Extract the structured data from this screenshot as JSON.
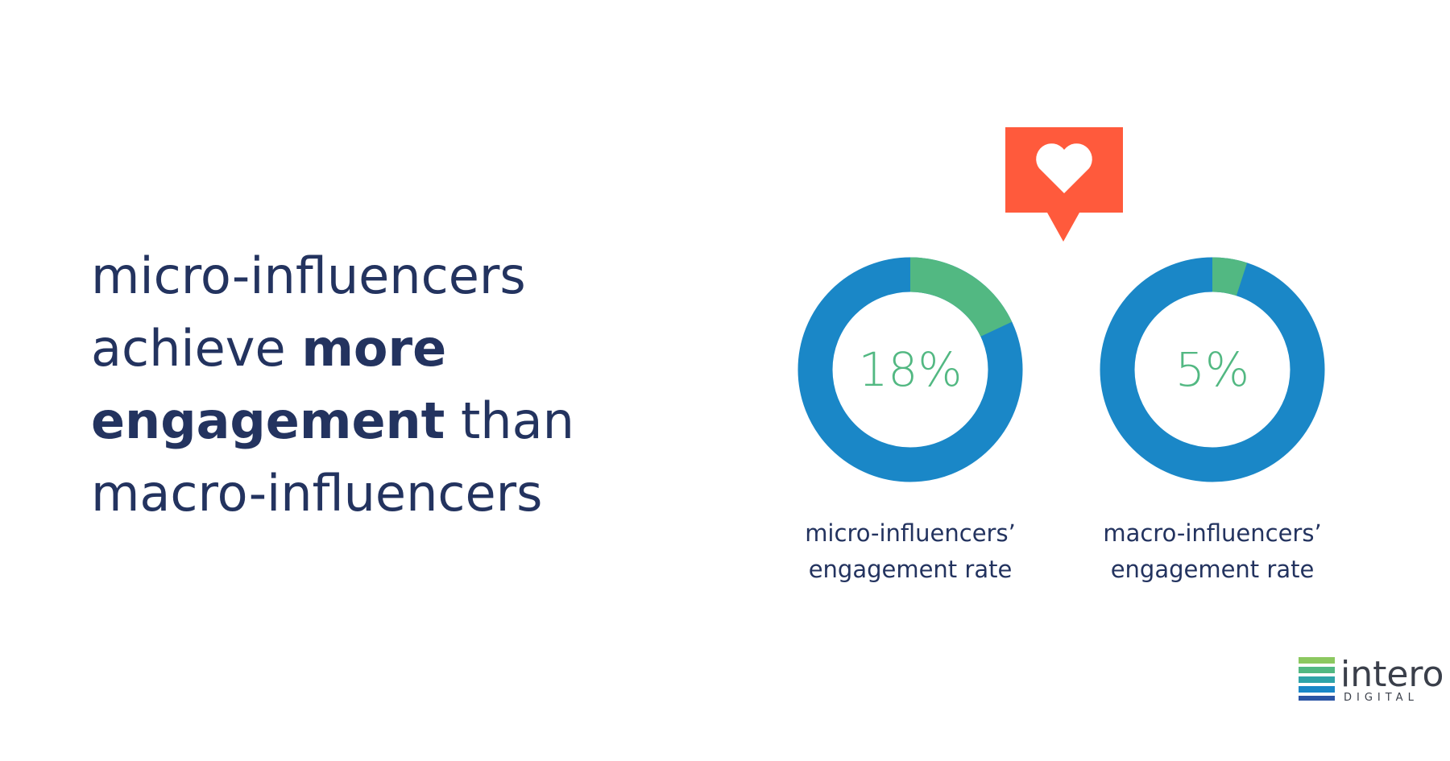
{
  "headline": {
    "line1": "micro-influencers",
    "line2_regular": "achieve",
    "line2_bold": "more",
    "line3_bold": "engagement",
    "line3_regular": "than",
    "line4": "macro-influencers"
  },
  "chart_data": [
    {
      "type": "donut",
      "values": [
        18
      ],
      "value_labels": [
        "18%"
      ],
      "label_lines": [
        "micro-influencers’",
        "engagement rate"
      ],
      "color": "#52b882",
      "track_color": "#1a87c7"
    },
    {
      "type": "donut",
      "values": [
        5
      ],
      "value_labels": [
        "5%"
      ],
      "label_lines": [
        "macro-influencers’",
        "engagement rate"
      ],
      "color": "#52b882",
      "track_color": "#1a87c7"
    }
  ],
  "logo": {
    "name": "intero",
    "sub": "DIGITAL"
  }
}
